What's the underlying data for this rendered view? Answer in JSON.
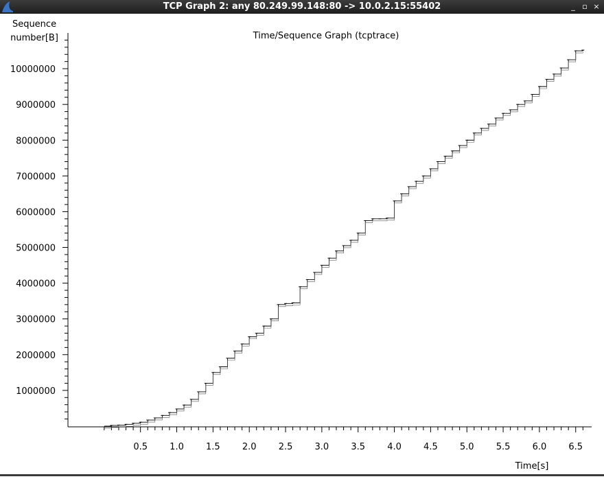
{
  "window": {
    "title": "TCP Graph 2: any 80.249.99.148:80 -> 10.0.2.15:55402",
    "minimize_glyph": "_",
    "maximize_glyph": "▫",
    "close_glyph": "×",
    "icon": "wireshark-fin-icon"
  },
  "colors": {
    "titlebar": "#2b2b2b",
    "icon_blue": "#3c74c4",
    "trace": "#000000"
  },
  "chart_data": {
    "type": "line",
    "title": "Time/Sequence Graph (tcptrace)",
    "ylabel_line1": "Sequence",
    "ylabel_line2": "number[B]",
    "xlabel": "Time[s]",
    "xlim": [
      -0.5,
      6.72
    ],
    "ylim": [
      -20000,
      11000000
    ],
    "x_ticks": [
      "0.5",
      "1.0",
      "1.5",
      "2.0",
      "2.5",
      "3.0",
      "3.5",
      "4.0",
      "4.5",
      "5.0",
      "5.5",
      "6.0",
      "6.5"
    ],
    "x_tick_values": [
      0.5,
      1.0,
      1.5,
      2.0,
      2.5,
      3.0,
      3.5,
      4.0,
      4.5,
      5.0,
      5.5,
      6.0,
      6.5
    ],
    "y_ticks": [
      "1000000",
      "2000000",
      "3000000",
      "4000000",
      "5000000",
      "6000000",
      "7000000",
      "8000000",
      "9000000",
      "10000000"
    ],
    "y_tick_values": [
      1000000,
      2000000,
      3000000,
      4000000,
      5000000,
      6000000,
      7000000,
      8000000,
      9000000,
      10000000
    ],
    "grid": false,
    "series": [
      {
        "x": [
          0.0,
          0.1,
          0.2,
          0.3,
          0.4,
          0.5,
          0.6,
          0.7,
          0.8,
          0.9,
          1.0,
          1.1,
          1.2,
          1.3,
          1.4,
          1.5,
          1.6,
          1.7,
          1.8,
          1.9,
          2.0,
          2.1,
          2.2,
          2.3,
          2.4,
          2.5,
          2.6,
          2.7,
          2.8,
          2.9,
          3.0,
          3.1,
          3.2,
          3.3,
          3.4,
          3.5,
          3.6,
          3.7,
          3.8,
          3.9,
          4.0,
          4.1,
          4.2,
          4.3,
          4.4,
          4.5,
          4.6,
          4.7,
          4.8,
          4.9,
          5.0,
          5.1,
          5.2,
          5.3,
          5.4,
          5.5,
          5.6,
          5.7,
          5.8,
          5.9,
          6.0,
          6.1,
          6.2,
          6.3,
          6.4,
          6.5,
          6.6
        ],
        "y": [
          0,
          20000,
          30000,
          50000,
          80000,
          110000,
          170000,
          230000,
          300000,
          380000,
          480000,
          590000,
          750000,
          960000,
          1200000,
          1500000,
          1660000,
          1900000,
          2100000,
          2300000,
          2500000,
          2600000,
          2800000,
          3000000,
          3400000,
          3430000,
          3450000,
          3900000,
          4100000,
          4300000,
          4500000,
          4700000,
          4900000,
          5050000,
          5200000,
          5400000,
          5750000,
          5800000,
          5800000,
          5820000,
          6300000,
          6500000,
          6700000,
          6850000,
          7000000,
          7200000,
          7400000,
          7550000,
          7700000,
          7850000,
          8000000,
          8200000,
          8330000,
          8450000,
          8620000,
          8750000,
          8850000,
          9000000,
          9100000,
          9280000,
          9500000,
          9700000,
          9850000,
          10020000,
          10250000,
          10500000,
          10520000
        ]
      }
    ]
  }
}
